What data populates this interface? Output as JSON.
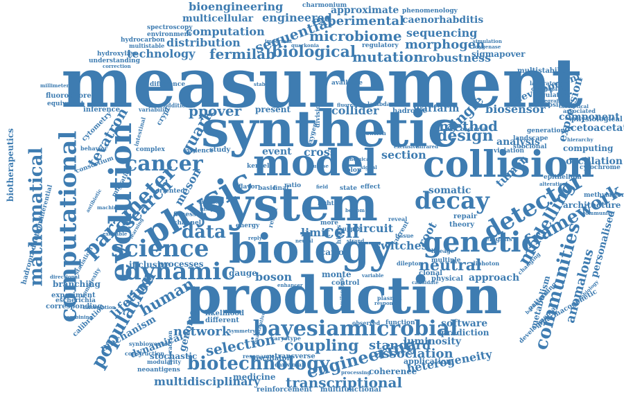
{
  "palette": {
    "word_color": "#3e7cb1",
    "background": "#ffffff"
  },
  "words": [
    {
      "t": "measurement"
    },
    {
      "t": "synthetic"
    },
    {
      "t": "system"
    },
    {
      "t": "production"
    },
    {
      "t": "biology"
    },
    {
      "t": "collision"
    },
    {
      "t": "model"
    },
    {
      "t": "evolution"
    },
    {
      "t": "physic"
    },
    {
      "t": "genetic"
    },
    {
      "t": "computational"
    },
    {
      "t": "science"
    },
    {
      "t": "detector"
    },
    {
      "t": "decay"
    },
    {
      "t": "mathematical"
    },
    {
      "t": "parameter"
    },
    {
      "t": "cancer"
    },
    {
      "t": "dynamic"
    },
    {
      "t": "bayesian"
    },
    {
      "t": "microbial"
    },
    {
      "t": "framework"
    },
    {
      "t": "population"
    },
    {
      "t": "biotechnology"
    },
    {
      "t": "engineering"
    },
    {
      "t": "communities"
    },
    {
      "t": "data"
    },
    {
      "t": "coupling"
    },
    {
      "t": "modelling"
    },
    {
      "t": "transcriptional"
    },
    {
      "t": "ppover"
    },
    {
      "t": "search"
    },
    {
      "t": "biological"
    },
    {
      "t": "mutation"
    },
    {
      "t": "sequential"
    },
    {
      "t": "microbiome"
    },
    {
      "t": "technology"
    },
    {
      "t": "fermilab"
    },
    {
      "t": "computation"
    },
    {
      "t": "distribution"
    },
    {
      "t": "experimental"
    },
    {
      "t": "bioengineering"
    },
    {
      "t": "engineered"
    },
    {
      "t": "approximate"
    },
    {
      "t": "multicellular"
    },
    {
      "t": "morphogen"
    },
    {
      "t": "sequencing"
    },
    {
      "t": "robustness"
    },
    {
      "t": "caenorhabditis"
    },
    {
      "t": "tevatron"
    },
    {
      "t": "single"
    },
    {
      "t": "design"
    },
    {
      "t": "method"
    },
    {
      "t": "biosensor"
    },
    {
      "t": "quark"
    },
    {
      "t": "cell"
    },
    {
      "t": "neutral"
    },
    {
      "t": "human"
    },
    {
      "t": "lifetime"
    },
    {
      "t": "network"
    },
    {
      "t": "selection"
    },
    {
      "t": "standard"
    },
    {
      "t": "association"
    },
    {
      "t": "heterogeneity"
    },
    {
      "t": "multidisciplinary"
    },
    {
      "t": "medicine"
    },
    {
      "t": "anomalous"
    },
    {
      "t": "personalised"
    },
    {
      "t": "biotherapeutics"
    },
    {
      "t": "boson"
    },
    {
      "t": "cross"
    },
    {
      "t": "section"
    },
    {
      "t": "event"
    },
    {
      "t": "collider"
    },
    {
      "t": "warfarin"
    },
    {
      "t": "analysis"
    },
    {
      "t": "expression"
    },
    {
      "t": "tumor"
    },
    {
      "t": "somatic"
    },
    {
      "t": "root"
    },
    {
      "t": "switches"
    },
    {
      "t": "circuit"
    },
    {
      "t": "limit"
    },
    {
      "t": "meson"
    },
    {
      "t": "genome"
    },
    {
      "t": "mechanism"
    },
    {
      "t": "dynamical"
    },
    {
      "t": "stochastic"
    },
    {
      "t": "luminosity"
    },
    {
      "t": "software"
    },
    {
      "t": "prediction"
    },
    {
      "t": "approach"
    },
    {
      "t": "oscillation"
    },
    {
      "t": "computing"
    },
    {
      "t": "component"
    },
    {
      "t": "acetoacetate"
    },
    {
      "t": "development"
    },
    {
      "t": "architecture"
    },
    {
      "t": "metabolism"
    },
    {
      "t": "pharmacogenetic"
    },
    {
      "t": "coherence"
    },
    {
      "t": "application"
    },
    {
      "t": "reinforcement"
    },
    {
      "t": "multifunctional"
    },
    {
      "t": "oscillator"
    },
    {
      "t": "neoantigens"
    },
    {
      "t": "modularity"
    },
    {
      "t": "construction"
    },
    {
      "t": "synbioweaver"
    },
    {
      "t": "corresponding"
    },
    {
      "t": "experiment"
    },
    {
      "t": "escherichia"
    },
    {
      "t": "branching"
    },
    {
      "t": "calibration"
    },
    {
      "t": "complexity"
    },
    {
      "t": "interaction"
    },
    {
      "t": "inclusive"
    },
    {
      "t": "processes"
    },
    {
      "t": "gauge"
    },
    {
      "t": "monte"
    },
    {
      "t": "carlo"
    },
    {
      "t": "control"
    },
    {
      "t": "present"
    },
    {
      "t": "cytometry"
    },
    {
      "t": "crypt"
    },
    {
      "t": "inference"
    },
    {
      "t": "hadroproduction"
    },
    {
      "t": "differential"
    },
    {
      "t": "fluorophore"
    },
    {
      "t": "equivalent"
    },
    {
      "t": "hydroxylase"
    },
    {
      "t": "understanding"
    },
    {
      "t": "difference"
    },
    {
      "t": "spectroscopy"
    },
    {
      "t": "environment"
    },
    {
      "t": "hydrocarbon"
    },
    {
      "t": "multistable"
    },
    {
      "t": "charmonium"
    },
    {
      "t": "phenomenology"
    },
    {
      "t": "regulatory"
    },
    {
      "t": "simulation"
    },
    {
      "t": "oxygenase"
    },
    {
      "t": "sigmapover"
    },
    {
      "t": "multistability"
    },
    {
      "t": "laboratory"
    },
    {
      "t": "combination"
    },
    {
      "t": "integrative"
    },
    {
      "t": "regulation"
    },
    {
      "t": "theoretical"
    },
    {
      "t": "generation"
    },
    {
      "t": "physiological"
    },
    {
      "t": "associated"
    },
    {
      "t": "hierarchy"
    },
    {
      "t": "landscape"
    },
    {
      "t": "subclonal"
    },
    {
      "t": "violation"
    },
    {
      "t": "epithelium"
    },
    {
      "t": "cytochrome"
    },
    {
      "t": "methylation"
    },
    {
      "t": "alteration"
    },
    {
      "t": "community"
    },
    {
      "t": "microbiology"
    },
    {
      "t": "developmental"
    },
    {
      "t": "background"
    },
    {
      "t": "patterning"
    },
    {
      "t": "changing"
    },
    {
      "t": "elegans"
    },
    {
      "t": "theory"
    },
    {
      "t": "repair"
    },
    {
      "t": "lineage"
    },
    {
      "t": "clonal"
    },
    {
      "t": "multiple"
    },
    {
      "t": "diphoton"
    },
    {
      "t": "dilepton"
    },
    {
      "t": "physical"
    },
    {
      "t": "candidate"
    },
    {
      "t": "function"
    },
    {
      "t": "observed"
    },
    {
      "t": "plasmid"
    },
    {
      "t": "response"
    },
    {
      "t": "transverse"
    },
    {
      "t": "darwinian"
    },
    {
      "t": "processing"
    },
    {
      "t": "resonance"
    },
    {
      "t": "karyotype"
    },
    {
      "t": "quantitative"
    },
    {
      "t": "likelihood"
    },
    {
      "t": "different"
    },
    {
      "t": "symmetry"
    },
    {
      "t": "information"
    },
    {
      "t": "combining"
    },
    {
      "t": "statistical"
    },
    {
      "t": "directional"
    },
    {
      "t": "antibiotic"
    },
    {
      "t": "machine"
    },
    {
      "t": "learning"
    },
    {
      "t": "excitable"
    },
    {
      "t": "channel"
    },
    {
      "t": "fitness"
    },
    {
      "t": "oriented"
    },
    {
      "t": "disease"
    },
    {
      "t": "fusion"
    },
    {
      "t": "energy"
    },
    {
      "t": "result"
    },
    {
      "t": "reply"
    },
    {
      "t": "state"
    },
    {
      "t": "flavor"
    },
    {
      "t": "basic"
    },
    {
      "t": "final"
    },
    {
      "t": "ratio"
    },
    {
      "t": "field"
    },
    {
      "t": "effect"
    },
    {
      "t": "higgs"
    },
    {
      "t": "colon"
    },
    {
      "t": "kernel"
    },
    {
      "t": "study"
    },
    {
      "t": "evidence"
    },
    {
      "t": "migration"
    },
    {
      "t": "consortium"
    },
    {
      "t": "behavior"
    },
    {
      "t": "intestinal"
    },
    {
      "t": "variability"
    },
    {
      "t": "additional"
    },
    {
      "t": "complex"
    },
    {
      "t": "tissue"
    },
    {
      "t": "upper"
    },
    {
      "t": "light"
    },
    {
      "t": "more"
    },
    {
      "t": "lambda"
    },
    {
      "t": "hadronic"
    },
    {
      "t": "bacterial"
    },
    {
      "t": "division"
    },
    {
      "t": "oxygen"
    },
    {
      "t": "switch"
    },
    {
      "t": "available"
    },
    {
      "t": "fluorescence"
    },
    {
      "t": "stability"
    },
    {
      "t": "important"
    },
    {
      "t": "quarkonia"
    },
    {
      "t": "correction"
    },
    {
      "t": "millimeter"
    },
    {
      "t": "upsilon1s"
    },
    {
      "t": "current"
    },
    {
      "t": "variable"
    },
    {
      "t": "enhancer"
    },
    {
      "t": "semileptonic"
    },
    {
      "t": "strand"
    },
    {
      "t": "reveal"
    },
    {
      "t": "bottom"
    },
    {
      "t": "chemical"
    },
    {
      "t": "glucose"
    },
    {
      "t": "neural"
    },
    {
      "t": "exclusive"
    },
    {
      "t": "infrared"
    },
    {
      "t": "signal"
    }
  ]
}
